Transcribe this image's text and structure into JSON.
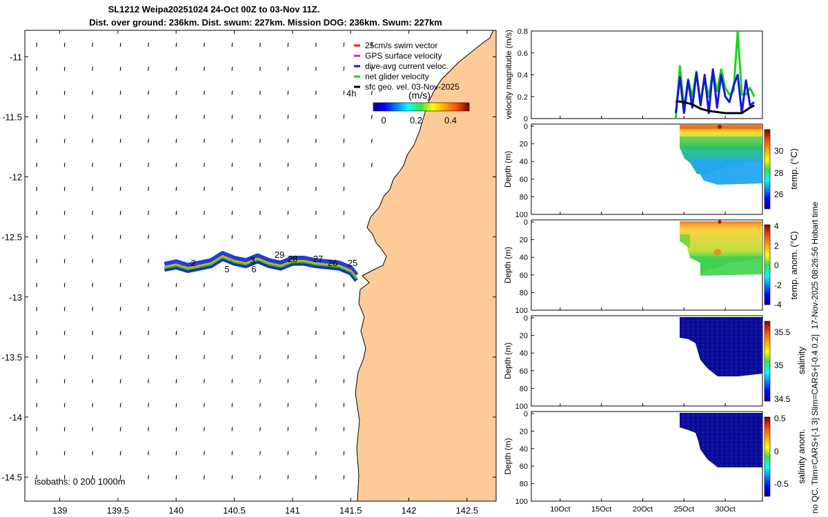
{
  "header": {
    "title_line1": "SL1212 Weipa20251024 24-Oct 00Z to 03-Nov 11Z.",
    "title_line2": "Dist. over ground: 236km. Dist. swum: 227km. Mission DOG: 236km. Swum: 227km"
  },
  "map": {
    "x_ticks": [
      "139",
      "139.5",
      "140",
      "140.5",
      "141",
      "141.5",
      "142",
      "142.5"
    ],
    "x_tick_values": [
      139,
      139.5,
      140,
      140.5,
      141,
      141.5,
      142,
      142.5
    ],
    "y_ticks": [
      "-11",
      "-11.5",
      "-12",
      "-12.5",
      "-13",
      "-13.5",
      "-14",
      "-14.5"
    ],
    "y_tick_values": [
      -11,
      -11.5,
      -12,
      -12.5,
      -13,
      -13.5,
      -14,
      -14.5
    ],
    "xlim": [
      138.7,
      142.75
    ],
    "ylim": [
      -14.7,
      -10.78
    ],
    "land_color": "#fdcb97",
    "legend": [
      {
        "label": "25cm/s swim vector",
        "color": "#e11c1c"
      },
      {
        "label": "GPS surface velocity",
        "color": "#d020d0"
      },
      {
        "label": "dive-avg current veloc.",
        "color": "#1515e0"
      },
      {
        "label": "net glider velocity",
        "color": "#19d519"
      },
      {
        "label": "sfc geo. vel. 03-Nov-2025",
        "color": "#000000"
      }
    ],
    "colorbar": {
      "label": "(m/s)",
      "ticks": [
        "0",
        "0.2",
        "0.4"
      ],
      "prefix": "4h"
    },
    "isobaths_label": "isobaths: 0   200  1000m",
    "track_labels": [
      "2",
      "5",
      "3",
      "6",
      "29",
      "28",
      "27",
      "26",
      "25"
    ]
  },
  "panels": {
    "shared_x_ticks": [
      "10Oct",
      "15Oct",
      "20Oct",
      "25Oct",
      "30Oct"
    ],
    "velocity": {
      "ylabel": "velocity magnitude (m/s)",
      "y_ticks": [
        "0",
        "0.2",
        "0.4",
        "0.6",
        "0.8"
      ],
      "ylim": [
        0,
        0.8
      ]
    },
    "depth_ticks": [
      "0",
      "20",
      "40",
      "60",
      "80",
      "100"
    ],
    "depth_ylabel": "Depth (m)",
    "temperature": {
      "cb_label": "temp. (°C)",
      "cb_ticks": [
        "30",
        "28",
        "26"
      ]
    },
    "temp_anom": {
      "cb_label": "temp. anom. (°C)",
      "cb_ticks": [
        "4",
        "2",
        "0",
        "-2",
        "-4"
      ]
    },
    "salinity": {
      "cb_label": "salinity",
      "cb_ticks": [
        "35.5",
        "35",
        "34.5"
      ]
    },
    "sal_anom": {
      "cb_label": "salinity anom.",
      "cb_ticks": [
        "0.5",
        "0",
        "-0.5"
      ]
    }
  },
  "side_text_1": "17-Nov-2025 08:26:56 Hobart time",
  "side_text_2": "no QC. Tlim=CARS+[-1 3] Slim=CARS+[-0.4 0.2]",
  "chart_data": [
    {
      "type": "scatter",
      "title": "SL1212 Weipa20251024 24-Oct 00Z to 03-Nov 11Z.",
      "x_axis": "longitude",
      "y_axis": "latitude",
      "xlim": [
        138.7,
        142.75
      ],
      "ylim": [
        -14.7,
        -10.78
      ],
      "series": [
        {
          "name": "net glider velocity",
          "x": [
            139.9,
            140.0,
            140.1,
            140.2,
            140.3,
            140.4,
            140.5,
            140.6,
            140.7,
            140.8,
            140.9,
            141.0,
            141.1,
            141.2,
            141.3,
            141.4,
            141.5,
            141.55
          ],
          "y": [
            -12.75,
            -12.73,
            -12.76,
            -12.74,
            -12.72,
            -12.66,
            -12.7,
            -12.72,
            -12.68,
            -12.72,
            -12.74,
            -12.7,
            -12.7,
            -12.72,
            -12.73,
            -12.74,
            -12.78,
            -12.84
          ]
        }
      ]
    },
    {
      "type": "line",
      "ylabel": "velocity magnitude (m/s)",
      "ylim": [
        0,
        0.8
      ],
      "series": [
        {
          "name": "net glider velocity",
          "x": [
            24.0,
            24.5,
            25.0,
            25.5,
            26.0,
            26.5,
            27.0,
            27.5,
            28.0,
            28.5,
            29.0,
            29.5,
            30.0,
            30.5,
            31.0,
            31.5,
            32.0,
            32.5,
            33.0,
            33.5
          ],
          "values": [
            0.0,
            0.48,
            0.1,
            0.36,
            0.2,
            0.43,
            0.15,
            0.37,
            0.2,
            0.44,
            0.25,
            0.45,
            0.28,
            0.22,
            0.25,
            0.8,
            0.22,
            0.22,
            0.28,
            0.2
          ]
        },
        {
          "name": "dive-avg current veloc.",
          "x": [
            24.0,
            24.5,
            25.0,
            25.5,
            26.0,
            26.5,
            27.0,
            27.5,
            28.0,
            28.5,
            29.0,
            29.5,
            30.0,
            30.5,
            31.0,
            31.5,
            32.0,
            32.5,
            33.0,
            33.5
          ],
          "values": [
            0.05,
            0.38,
            0.05,
            0.35,
            0.1,
            0.42,
            0.12,
            0.4,
            0.05,
            0.45,
            0.1,
            0.4,
            0.2,
            0.15,
            0.3,
            0.4,
            0.05,
            0.35,
            0.12,
            0.15
          ]
        },
        {
          "name": "sfc geo. vel. 03-Nov-2025",
          "x": [
            24.0,
            25.0,
            26.0,
            27.0,
            28.0,
            29.0,
            30.0,
            31.0,
            32.0,
            33.0,
            33.5
          ],
          "values": [
            0.16,
            0.15,
            0.13,
            0.09,
            0.07,
            0.06,
            0.05,
            0.05,
            0.05,
            0.1,
            0.12
          ]
        }
      ]
    },
    {
      "type": "heatmap",
      "ylabel": "Depth (m)",
      "colorbar": "temp. (°C)",
      "ylim": [
        100,
        0
      ]
    },
    {
      "type": "heatmap",
      "ylabel": "Depth (m)",
      "colorbar": "temp. anom. (°C)",
      "ylim": [
        100,
        0
      ]
    },
    {
      "type": "heatmap",
      "ylabel": "Depth (m)",
      "colorbar": "salinity",
      "ylim": [
        100,
        0
      ]
    },
    {
      "type": "heatmap",
      "ylabel": "Depth (m)",
      "colorbar": "salinity anom.",
      "ylim": [
        100,
        0
      ]
    }
  ]
}
